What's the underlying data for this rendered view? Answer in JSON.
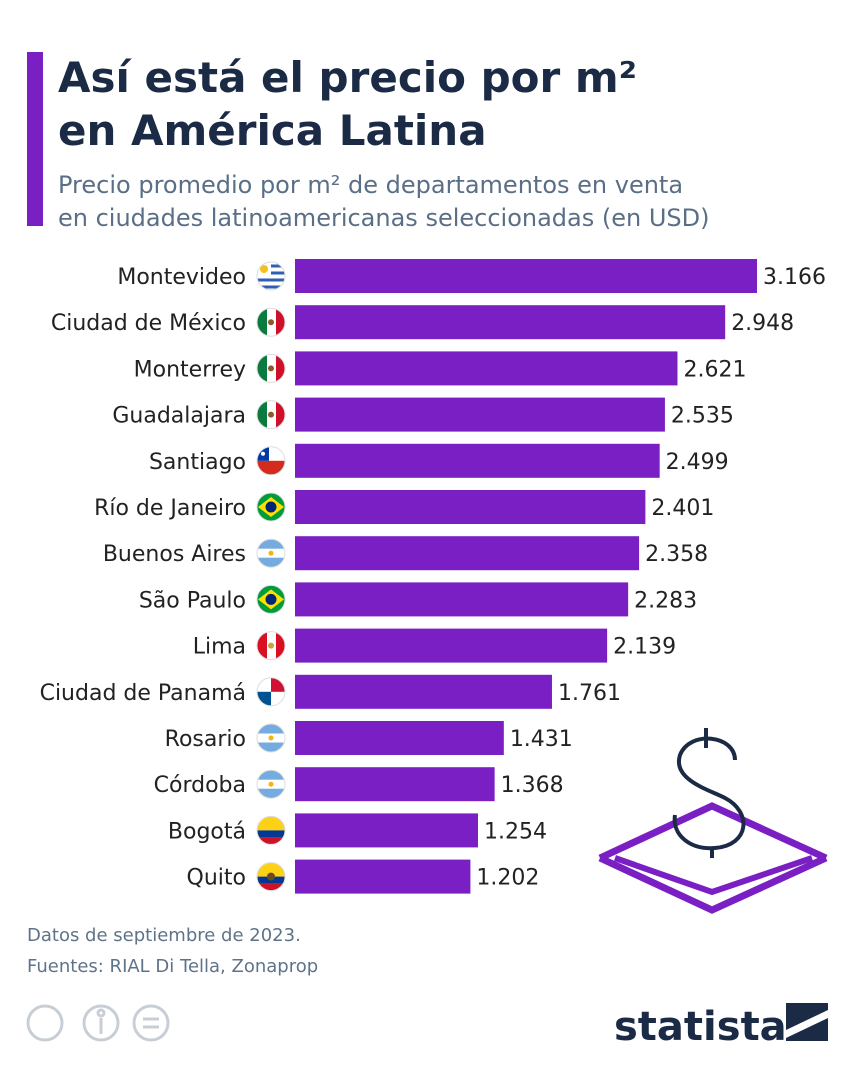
{
  "chart_data": {
    "type": "bar",
    "orientation": "horizontal",
    "title": [
      "Así está el precio por m²",
      "en América Latina"
    ],
    "subtitle": [
      "Precio promedio por m² de departamentos en venta",
      "en ciudades latinoamericanas seleccionadas (en USD)"
    ],
    "categories": [
      "Montevideo",
      "Ciudad de México",
      "Monterrey",
      "Guadalajara",
      "Santiago",
      "Río de Janeiro",
      "Buenos Aires",
      "São Paulo",
      "Lima",
      "Ciudad de Panamá",
      "Rosario",
      "Córdoba",
      "Bogotá",
      "Quito"
    ],
    "values": [
      3166,
      2948,
      2621,
      2535,
      2499,
      2401,
      2358,
      2283,
      2139,
      1761,
      1431,
      1368,
      1254,
      1202
    ],
    "value_labels": [
      "3.166",
      "2.948",
      "2.621",
      "2.535",
      "2.499",
      "2.401",
      "2.358",
      "2.283",
      "2.139",
      "1.761",
      "1.431",
      "1.368",
      "1.254",
      "1.202"
    ],
    "color": "#7a1fc4",
    "notes": [
      "Datos de septiembre de 2023.",
      "Fuentes: RIAL Di Tella, Zonaprop"
    ],
    "brand": "statista"
  }
}
